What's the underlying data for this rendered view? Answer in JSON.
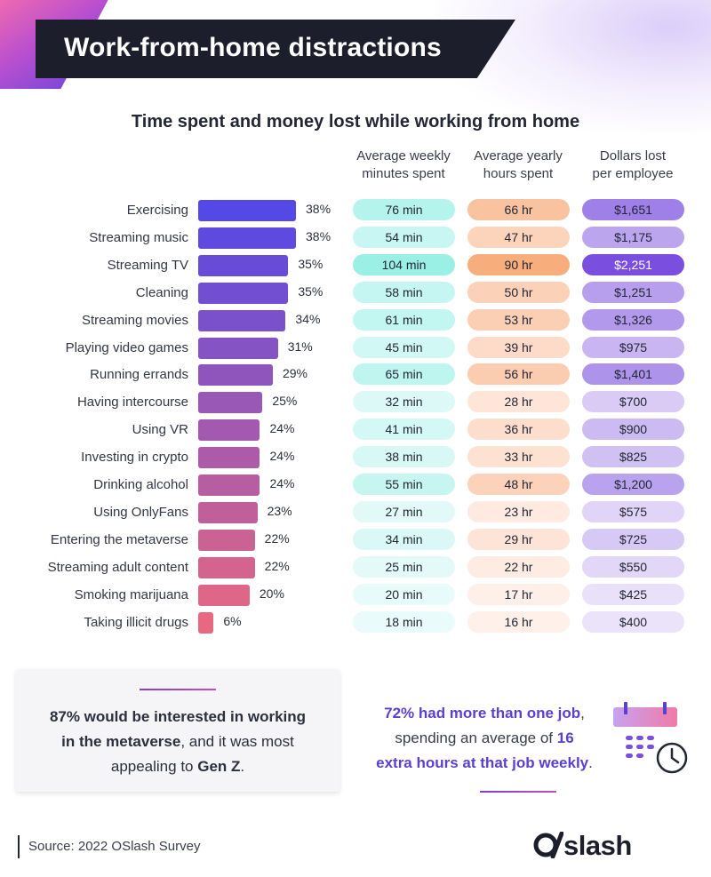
{
  "header": {
    "title": "Work-from-home distractions"
  },
  "chart_data": {
    "type": "table",
    "title": "Time spent and money lost while working from home",
    "columns": [
      "Average weekly minutes spent",
      "Average yearly hours spent",
      "Dollars lost per employee"
    ],
    "column_headers": {
      "minutes": [
        "Average weekly",
        "minutes spent"
      ],
      "hours": [
        "Average yearly",
        "hours spent"
      ],
      "dollars": [
        "Dollars lost",
        "per employee"
      ]
    },
    "rows": [
      {
        "category": "Exercising",
        "percent": 38,
        "percent_label": "38%",
        "minutes": "76 min",
        "hours": "66 hr",
        "dollars": "$1,651",
        "dollars_value": 1651
      },
      {
        "category": "Streaming music",
        "percent": 38,
        "percent_label": "38%",
        "minutes": "54 min",
        "hours": "47 hr",
        "dollars": "$1,175",
        "dollars_value": 1175
      },
      {
        "category": "Streaming TV",
        "percent": 35,
        "percent_label": "35%",
        "minutes": "104 min",
        "hours": "90 hr",
        "dollars": "$2,251",
        "dollars_value": 2251
      },
      {
        "category": "Cleaning",
        "percent": 35,
        "percent_label": "35%",
        "minutes": "58 min",
        "hours": "50 hr",
        "dollars": "$1,251",
        "dollars_value": 1251
      },
      {
        "category": "Streaming movies",
        "percent": 34,
        "percent_label": "34%",
        "minutes": "61 min",
        "hours": "53 hr",
        "dollars": "$1,326",
        "dollars_value": 1326
      },
      {
        "category": "Playing video games",
        "percent": 31,
        "percent_label": "31%",
        "minutes": "45 min",
        "hours": "39 hr",
        "dollars": "$975",
        "dollars_value": 975
      },
      {
        "category": "Running errands",
        "percent": 29,
        "percent_label": "29%",
        "minutes": "65 min",
        "hours": "56 hr",
        "dollars": "$1,401",
        "dollars_value": 1401
      },
      {
        "category": "Having intercourse",
        "percent": 25,
        "percent_label": "25%",
        "minutes": "32 min",
        "hours": "28 hr",
        "dollars": "$700",
        "dollars_value": 700
      },
      {
        "category": "Using VR",
        "percent": 24,
        "percent_label": "24%",
        "minutes": "41 min",
        "hours": "36 hr",
        "dollars": "$900",
        "dollars_value": 900
      },
      {
        "category": "Investing in crypto",
        "percent": 24,
        "percent_label": "24%",
        "minutes": "38 min",
        "hours": "33 hr",
        "dollars": "$825",
        "dollars_value": 825
      },
      {
        "category": "Drinking alcohol",
        "percent": 24,
        "percent_label": "24%",
        "minutes": "55 min",
        "hours": "48 hr",
        "dollars": "$1,200",
        "dollars_value": 1200
      },
      {
        "category": "Using OnlyFans",
        "percent": 23,
        "percent_label": "23%",
        "minutes": "27 min",
        "hours": "23 hr",
        "dollars": "$575",
        "dollars_value": 575
      },
      {
        "category": "Entering the metaverse",
        "percent": 22,
        "percent_label": "22%",
        "minutes": "34 min",
        "hours": "29 hr",
        "dollars": "$725",
        "dollars_value": 725
      },
      {
        "category": "Streaming adult content",
        "percent": 22,
        "percent_label": "22%",
        "minutes": "25 min",
        "hours": "22 hr",
        "dollars": "$550",
        "dollars_value": 550
      },
      {
        "category": "Smoking marijuana",
        "percent": 20,
        "percent_label": "20%",
        "minutes": "20 min",
        "hours": "17 hr",
        "dollars": "$425",
        "dollars_value": 425
      },
      {
        "category": "Taking illicit drugs",
        "percent": 6,
        "percent_label": "6%",
        "minutes": "18 min",
        "hours": "16 hr",
        "dollars": "$400",
        "dollars_value": 400
      }
    ]
  },
  "colors": {
    "bar_start": "#5448e6",
    "bar_end": "#e8687f",
    "minutes_light": "#e9fbfa",
    "minutes_dark": "#9bf0e6",
    "hours_light": "#fff0ea",
    "hours_dark": "#f7ad7c",
    "dollars_light": "#ebe3f9",
    "dollars_dark": "#7a4fe0",
    "accent": "#5a3fd0"
  },
  "callout_left": {
    "line1_bold": "87% would be interested in working",
    "line2_bold": "in the metaverse",
    "line2_rest": ", and it was most",
    "line3_plain": "appealing to ",
    "line3_bold": "Gen Z",
    "line3_end": "."
  },
  "callout_right": {
    "line1_bold": "72% had more than one job",
    "line1_end": ",",
    "line2_plain": "spending an average of ",
    "line2_bold": "16",
    "line3_bold": "extra hours at that job weekly",
    "line3_end": ".",
    "icon": "calendar-clock-icon"
  },
  "footer": {
    "source": "Source: 2022 OSlash Survey",
    "logo": "slash"
  }
}
